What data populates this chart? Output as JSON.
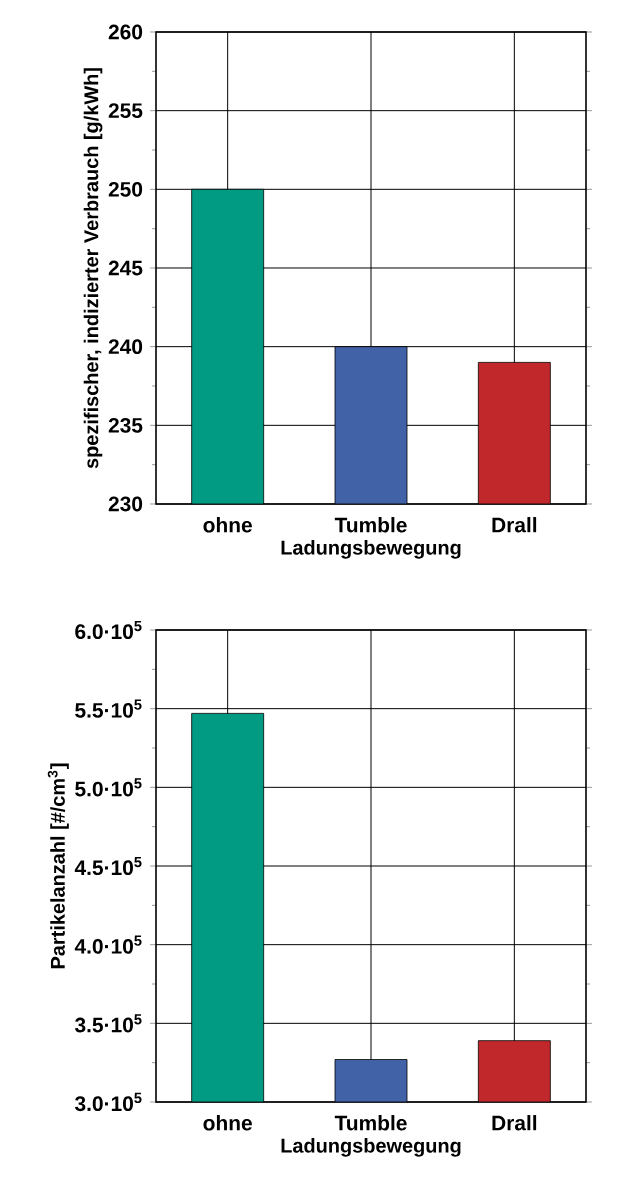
{
  "chart_data": [
    {
      "type": "bar",
      "xlabel": "Ladungsbewegung",
      "ylabel": "spezifischer, indizierter Verbrauch [g/kWh]",
      "categories": [
        "ohne",
        "Tumble",
        "Drall"
      ],
      "values": [
        250,
        240,
        239
      ],
      "colors": [
        "#009b82",
        "#4262a8",
        "#c0282c"
      ],
      "ylim": [
        230,
        260
      ],
      "yticks": [
        230,
        235,
        240,
        245,
        250,
        255,
        260
      ],
      "grid": true
    },
    {
      "type": "bar",
      "xlabel": "Ladungsbewegung",
      "ylabel": "Partikelanzahl [#/cm$^{3}$]",
      "categories": [
        "ohne",
        "Tumble",
        "Drall"
      ],
      "values": [
        547000,
        327000,
        339000
      ],
      "colors": [
        "#009b82",
        "#4262a8",
        "#c0282c"
      ],
      "ylim": [
        300000,
        600000
      ],
      "yticks": [
        {
          "value": 300000,
          "label": "3.0·10$^{5}$"
        },
        {
          "value": 350000,
          "label": "3.5·10$^{5}$"
        },
        {
          "value": 400000,
          "label": "4.0·10$^{5}$"
        },
        {
          "value": 450000,
          "label": "4.5·10$^{5}$"
        },
        {
          "value": 500000,
          "label": "5.0·10$^{5}$"
        },
        {
          "value": 550000,
          "label": "5.5·10$^{5}$"
        },
        {
          "value": 600000,
          "label": "6.0·10$^{5}$"
        }
      ],
      "grid": true
    }
  ]
}
